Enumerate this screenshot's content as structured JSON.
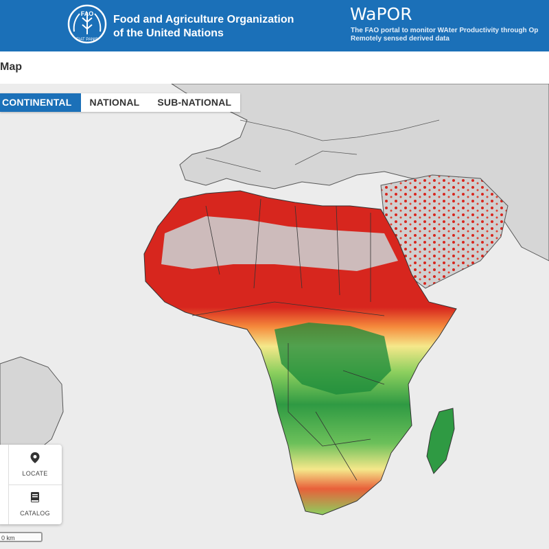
{
  "header": {
    "org_name": "Food and Agriculture Organization\nof the United Nations",
    "logo_text": "FAO",
    "logo_motto": "FIAT PANIS",
    "app_title": "WaPOR",
    "app_subtitle_1": "The FAO portal to monitor WAter Productivity through Op",
    "app_subtitle_2": "Remotely sensed derived data"
  },
  "page": {
    "title": "Map"
  },
  "tabs": [
    {
      "label": "CONTINENTAL",
      "active": true
    },
    {
      "label": "NATIONAL",
      "active": false
    },
    {
      "label": "SUB-NATIONAL",
      "active": false
    }
  ],
  "tools": {
    "locate_label": "LOCATE",
    "catalog_label": "CATALOG"
  },
  "scale": {
    "label": "0 km"
  },
  "colors": {
    "brand_blue": "#1b70b8",
    "map_red": "#d7261e",
    "map_orange": "#f58a3c",
    "map_yellow": "#f5e88a",
    "map_green": "#5cb85c",
    "map_dark_green": "#1a8a3a",
    "land_gray": "#cfcfcf"
  }
}
